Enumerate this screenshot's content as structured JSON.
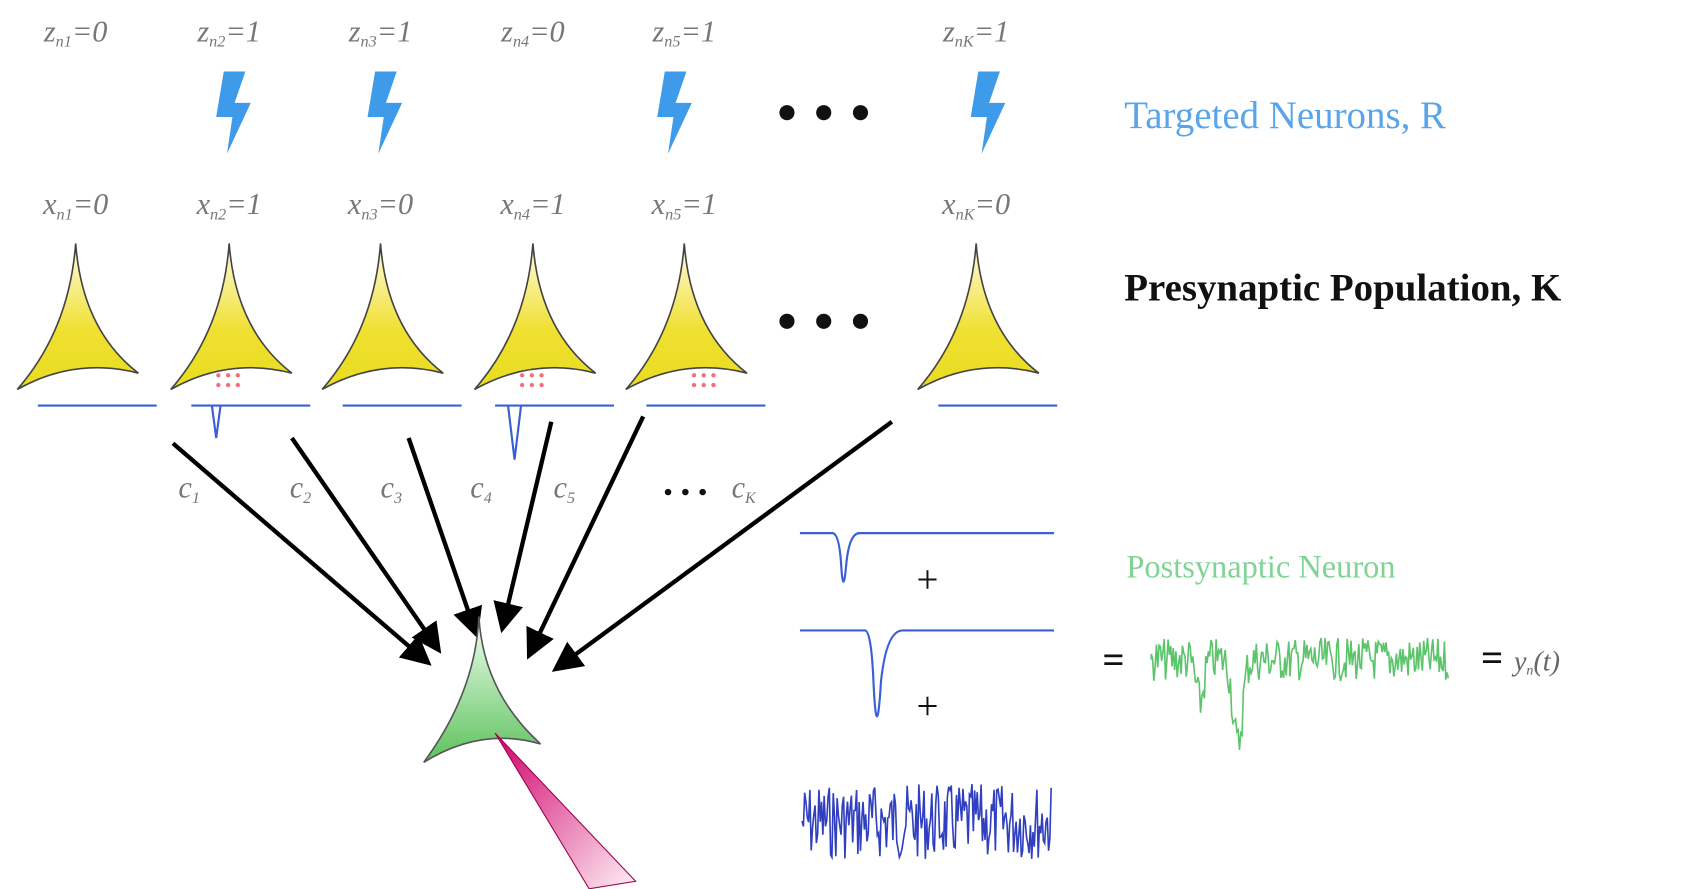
{
  "neurons": [
    {
      "z": {
        "var": "z",
        "sub": "n1",
        "rest": "=0"
      },
      "x": {
        "var": "x",
        "sub": "n1",
        "rest": "=0"
      },
      "c": {
        "var": "c",
        "sub": "1"
      }
    },
    {
      "z": {
        "var": "z",
        "sub": "n2",
        "rest": "=1"
      },
      "x": {
        "var": "x",
        "sub": "n2",
        "rest": "=1"
      },
      "c": {
        "var": "c",
        "sub": "2"
      }
    },
    {
      "z": {
        "var": "z",
        "sub": "n3",
        "rest": "=1"
      },
      "x": {
        "var": "x",
        "sub": "n3",
        "rest": "=0"
      },
      "c": {
        "var": "c",
        "sub": "3"
      }
    },
    {
      "z": {
        "var": "z",
        "sub": "n4",
        "rest": "=0"
      },
      "x": {
        "var": "x",
        "sub": "n4",
        "rest": "=1"
      },
      "c": {
        "var": "c",
        "sub": "4"
      }
    },
    {
      "z": {
        "var": "z",
        "sub": "n5",
        "rest": "=1"
      },
      "x": {
        "var": "x",
        "sub": "n5",
        "rest": "=1"
      },
      "c": {
        "var": "c",
        "sub": "5"
      }
    },
    {
      "z": {
        "var": "z",
        "sub": "nK",
        "rest": "=1"
      },
      "x": {
        "var": "x",
        "sub": "nK",
        "rest": "=0"
      },
      "c": {
        "var": "c",
        "sub": "K"
      }
    }
  ],
  "targeted_label": "Targeted Neurons, R",
  "presynaptic_label": "Presynaptic Population, K",
  "postsynaptic_label": "Postsynaptic Neuron",
  "plus": [
    "+",
    "+"
  ],
  "equals": "=",
  "output": {
    "equals": "=",
    "var": "y",
    "sub": "n",
    "rest": "(t)"
  }
}
